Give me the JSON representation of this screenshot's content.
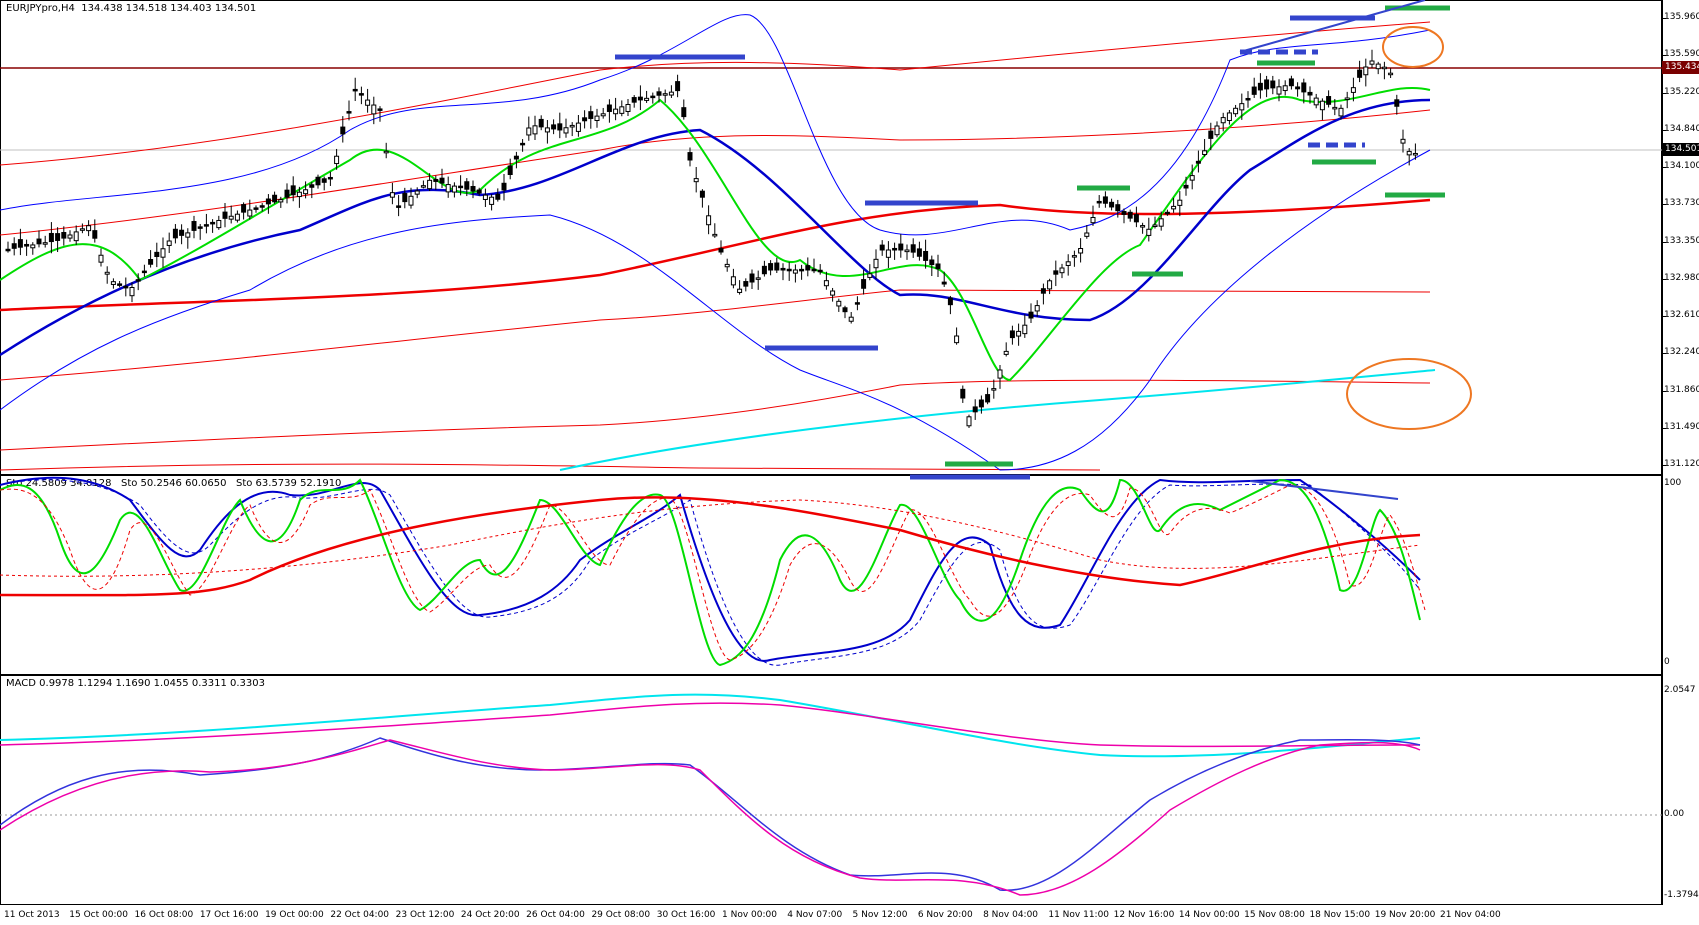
{
  "main_pane": {
    "title": "EURJPYpro,H4  134.438 134.518 134.403 134.501",
    "price_ticks": [
      "135.960",
      "135.590",
      "135.220",
      "134.840",
      "134.100",
      "133.730",
      "133.350",
      "132.980",
      "132.610",
      "132.240",
      "131.860",
      "131.490",
      "131.120"
    ],
    "resistance_tag": "135.434",
    "current_tag": "134.501"
  },
  "stoch_pane": {
    "title": "Sto 24.5809 34.0128   Sto 50.2546 60.0650   Sto 63.5739 52.1910",
    "ticks": [
      "100",
      "0"
    ]
  },
  "macd_pane": {
    "title": "MACD 0.9978 1.1294 1.1690 1.0455 0.3311 0.3303",
    "ticks": [
      "2.0547",
      "0.00",
      "-1.3794"
    ]
  },
  "time_axis": [
    "11 Oct 2013",
    "15 Oct 00:00",
    "16 Oct 08:00",
    "17 Oct 16:00",
    "19 Oct 00:00",
    "22 Oct 04:00",
    "23 Oct 12:00",
    "24 Oct 20:00",
    "26 Oct 04:00",
    "29 Oct 08:00",
    "30 Oct 16:00",
    "1 Nov 00:00",
    "4 Nov 07:00",
    "5 Nov 12:00",
    "6 Nov 20:00",
    "8 Nov 04:00",
    "11 Nov 11:00",
    "12 Nov 16:00",
    "14 Nov 00:00",
    "15 Nov 08:00",
    "18 Nov 15:00",
    "19 Nov 20:00",
    "21 Nov 04:00"
  ],
  "colors": {
    "bull_candle": "#000000",
    "bear_candle": "#000000",
    "ema_fast": "#00dd00",
    "ema_slow": "#0000cc",
    "ma_long": "#ee0000",
    "envelope": "#ee0000",
    "bollinger": "#0000ff",
    "trendline_cyan": "#00e5ee",
    "annotation_blue": "#3344cc",
    "annotation_green": "#22aa44",
    "circle": "#ee7722",
    "resistance": "#880000"
  },
  "chart_data": [
    {
      "type": "candlestick",
      "title": "EURJPYpro,H4",
      "ylim": [
        131.12,
        135.96
      ],
      "last": 134.501
    },
    {
      "type": "line",
      "title": "Stochastic",
      "ylim": [
        0,
        100
      ]
    },
    {
      "type": "line",
      "title": "MACD",
      "ylim": [
        -1.3794,
        2.0547
      ]
    }
  ]
}
